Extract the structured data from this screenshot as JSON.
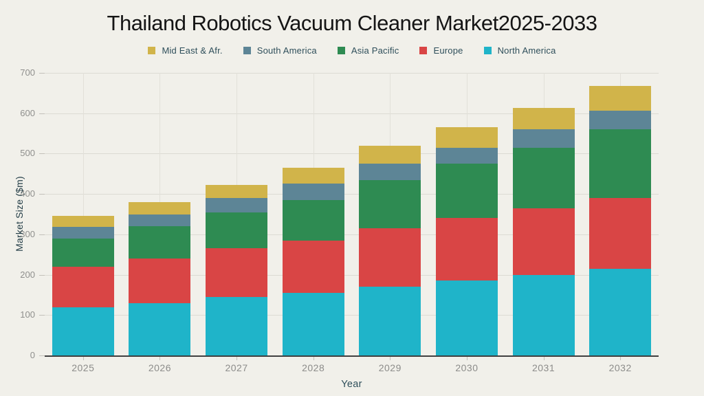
{
  "title": "Thailand Robotics Vacuum Cleaner Market2025-2033",
  "colors": {
    "background": "#f1f0ea",
    "gridline": "#dcdbd3",
    "axis_line": "#3f3f3f",
    "tick_text": "#8f8f8d",
    "label_text": "#2e4e5a",
    "title_text": "#151515"
  },
  "chart_data": {
    "type": "bar",
    "stacked": true,
    "title": "Thailand Robotics Vacuum Cleaner Market2025-2033",
    "xlabel": "Year",
    "ylabel": "Market Size ($m)",
    "ylim": [
      0,
      700
    ],
    "yticks": [
      0,
      100,
      200,
      300,
      400,
      500,
      600,
      700
    ],
    "grid": true,
    "legend_position": "top",
    "legend_order_note": "legend displays series in reverse stacking order",
    "categories": [
      "2025",
      "2026",
      "2027",
      "2028",
      "2029",
      "2030",
      "2031",
      "2032"
    ],
    "series": [
      {
        "name": "North America",
        "color": "#1fb4c9",
        "values": [
          120,
          130,
          145,
          155,
          170,
          185,
          200,
          215
        ]
      },
      {
        "name": "Europe",
        "color": "#d94545",
        "values": [
          100,
          110,
          120,
          130,
          145,
          155,
          165,
          175
        ]
      },
      {
        "name": "Asia Pacific",
        "color": "#2e8b52",
        "values": [
          70,
          80,
          90,
          100,
          120,
          135,
          150,
          170
        ]
      },
      {
        "name": "South America",
        "color": "#5d8596",
        "values": [
          28,
          30,
          35,
          40,
          40,
          40,
          45,
          47
        ]
      },
      {
        "name": "Mid East & Afr.",
        "color": "#d1b44a",
        "values": [
          27,
          30,
          33,
          40,
          45,
          50,
          53,
          61
        ]
      }
    ],
    "totals": [
      345,
      380,
      423,
      465,
      520,
      565,
      613,
      668
    ]
  }
}
